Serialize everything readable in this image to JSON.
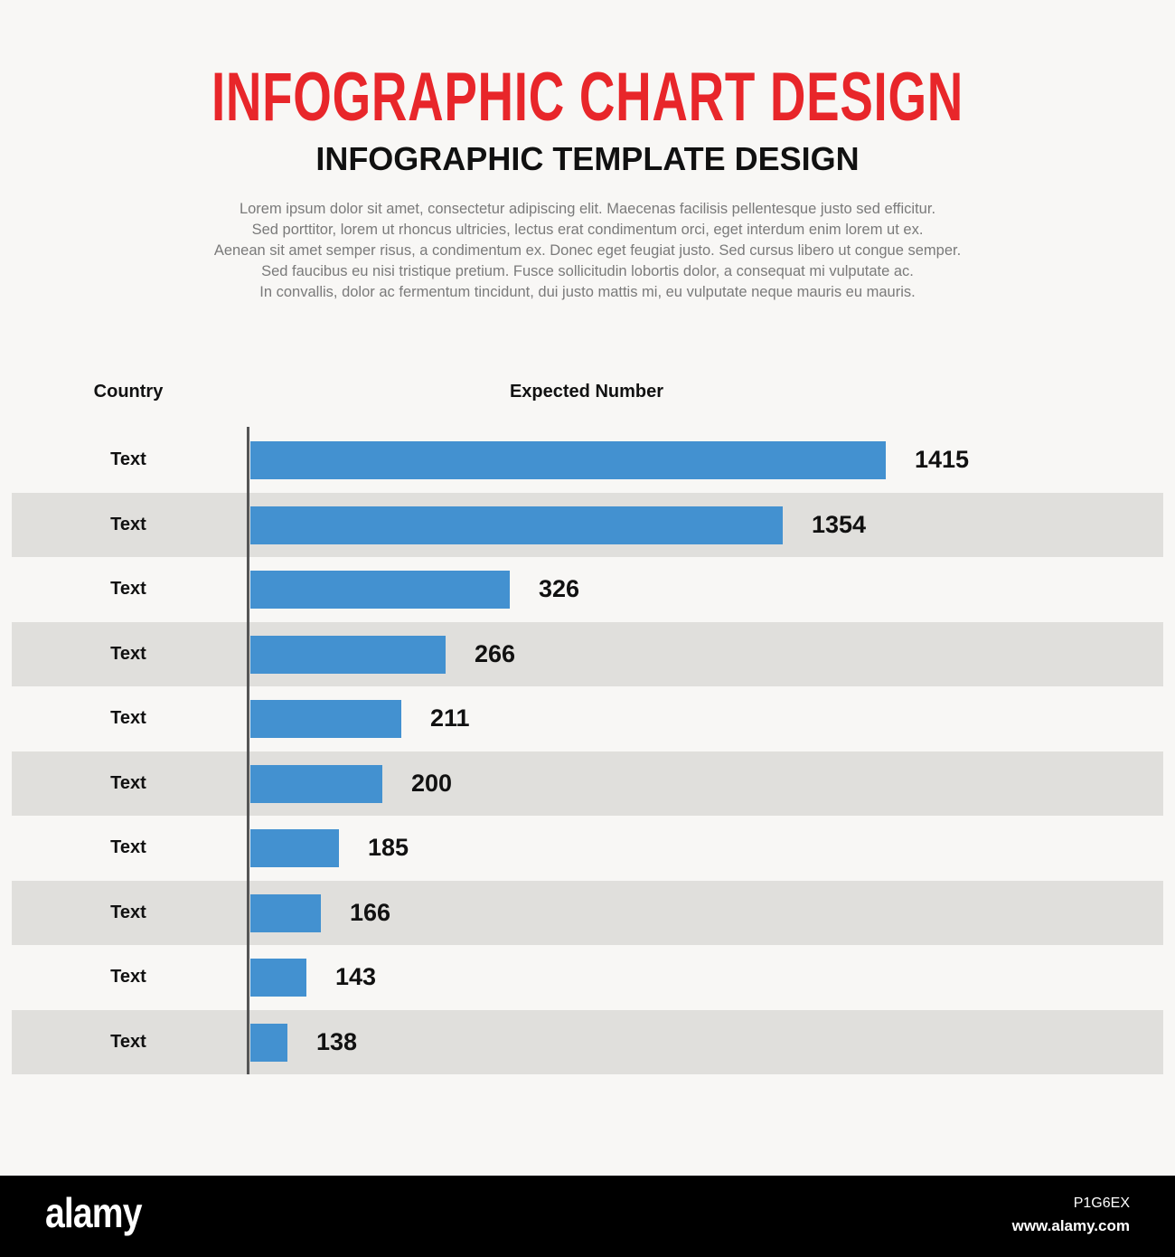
{
  "chart_data": {
    "type": "bar",
    "orientation": "horizontal",
    "title": "INFOGRAPHIC CHART DESIGN",
    "subtitle": "INFOGRAPHIC TEMPLATE DESIGN",
    "description": [
      "Lorem ipsum dolor sit amet, consectetur adipiscing elit. Maecenas facilisis pellentesque justo sed efficitur.",
      "Sed porttitor, lorem ut rhoncus ultricies, lectus erat condimentum orci, eget interdum enim lorem ut ex.",
      "Aenean sit amet semper risus, a condimentum ex. Donec eget feugiat justo. Sed cursus libero ut congue semper.",
      "Sed faucibus eu nisi tristique pretium. Fusce sollicitudin lobortis dolor, a consequat mi vulputate ac.",
      "In convallis, dolor ac fermentum tincidunt, dui justo mattis mi, eu vulputate neque mauris eu mauris."
    ],
    "category_header": "Country",
    "value_header": "Expected Number",
    "categories": [
      "Text",
      "Text",
      "Text",
      "Text",
      "Text",
      "Text",
      "Text",
      "Text",
      "Text",
      "Text"
    ],
    "values": [
      1415,
      1354,
      326,
      266,
      211,
      200,
      185,
      166,
      143,
      138
    ],
    "bar_color": "#4391d0",
    "title_color": "#e8262a",
    "row_stripe_color": "#e0dfdc",
    "grid": false
  },
  "footer": {
    "logo": "alamy",
    "image_code": "P1G6EX",
    "site": "www.alamy.com"
  }
}
